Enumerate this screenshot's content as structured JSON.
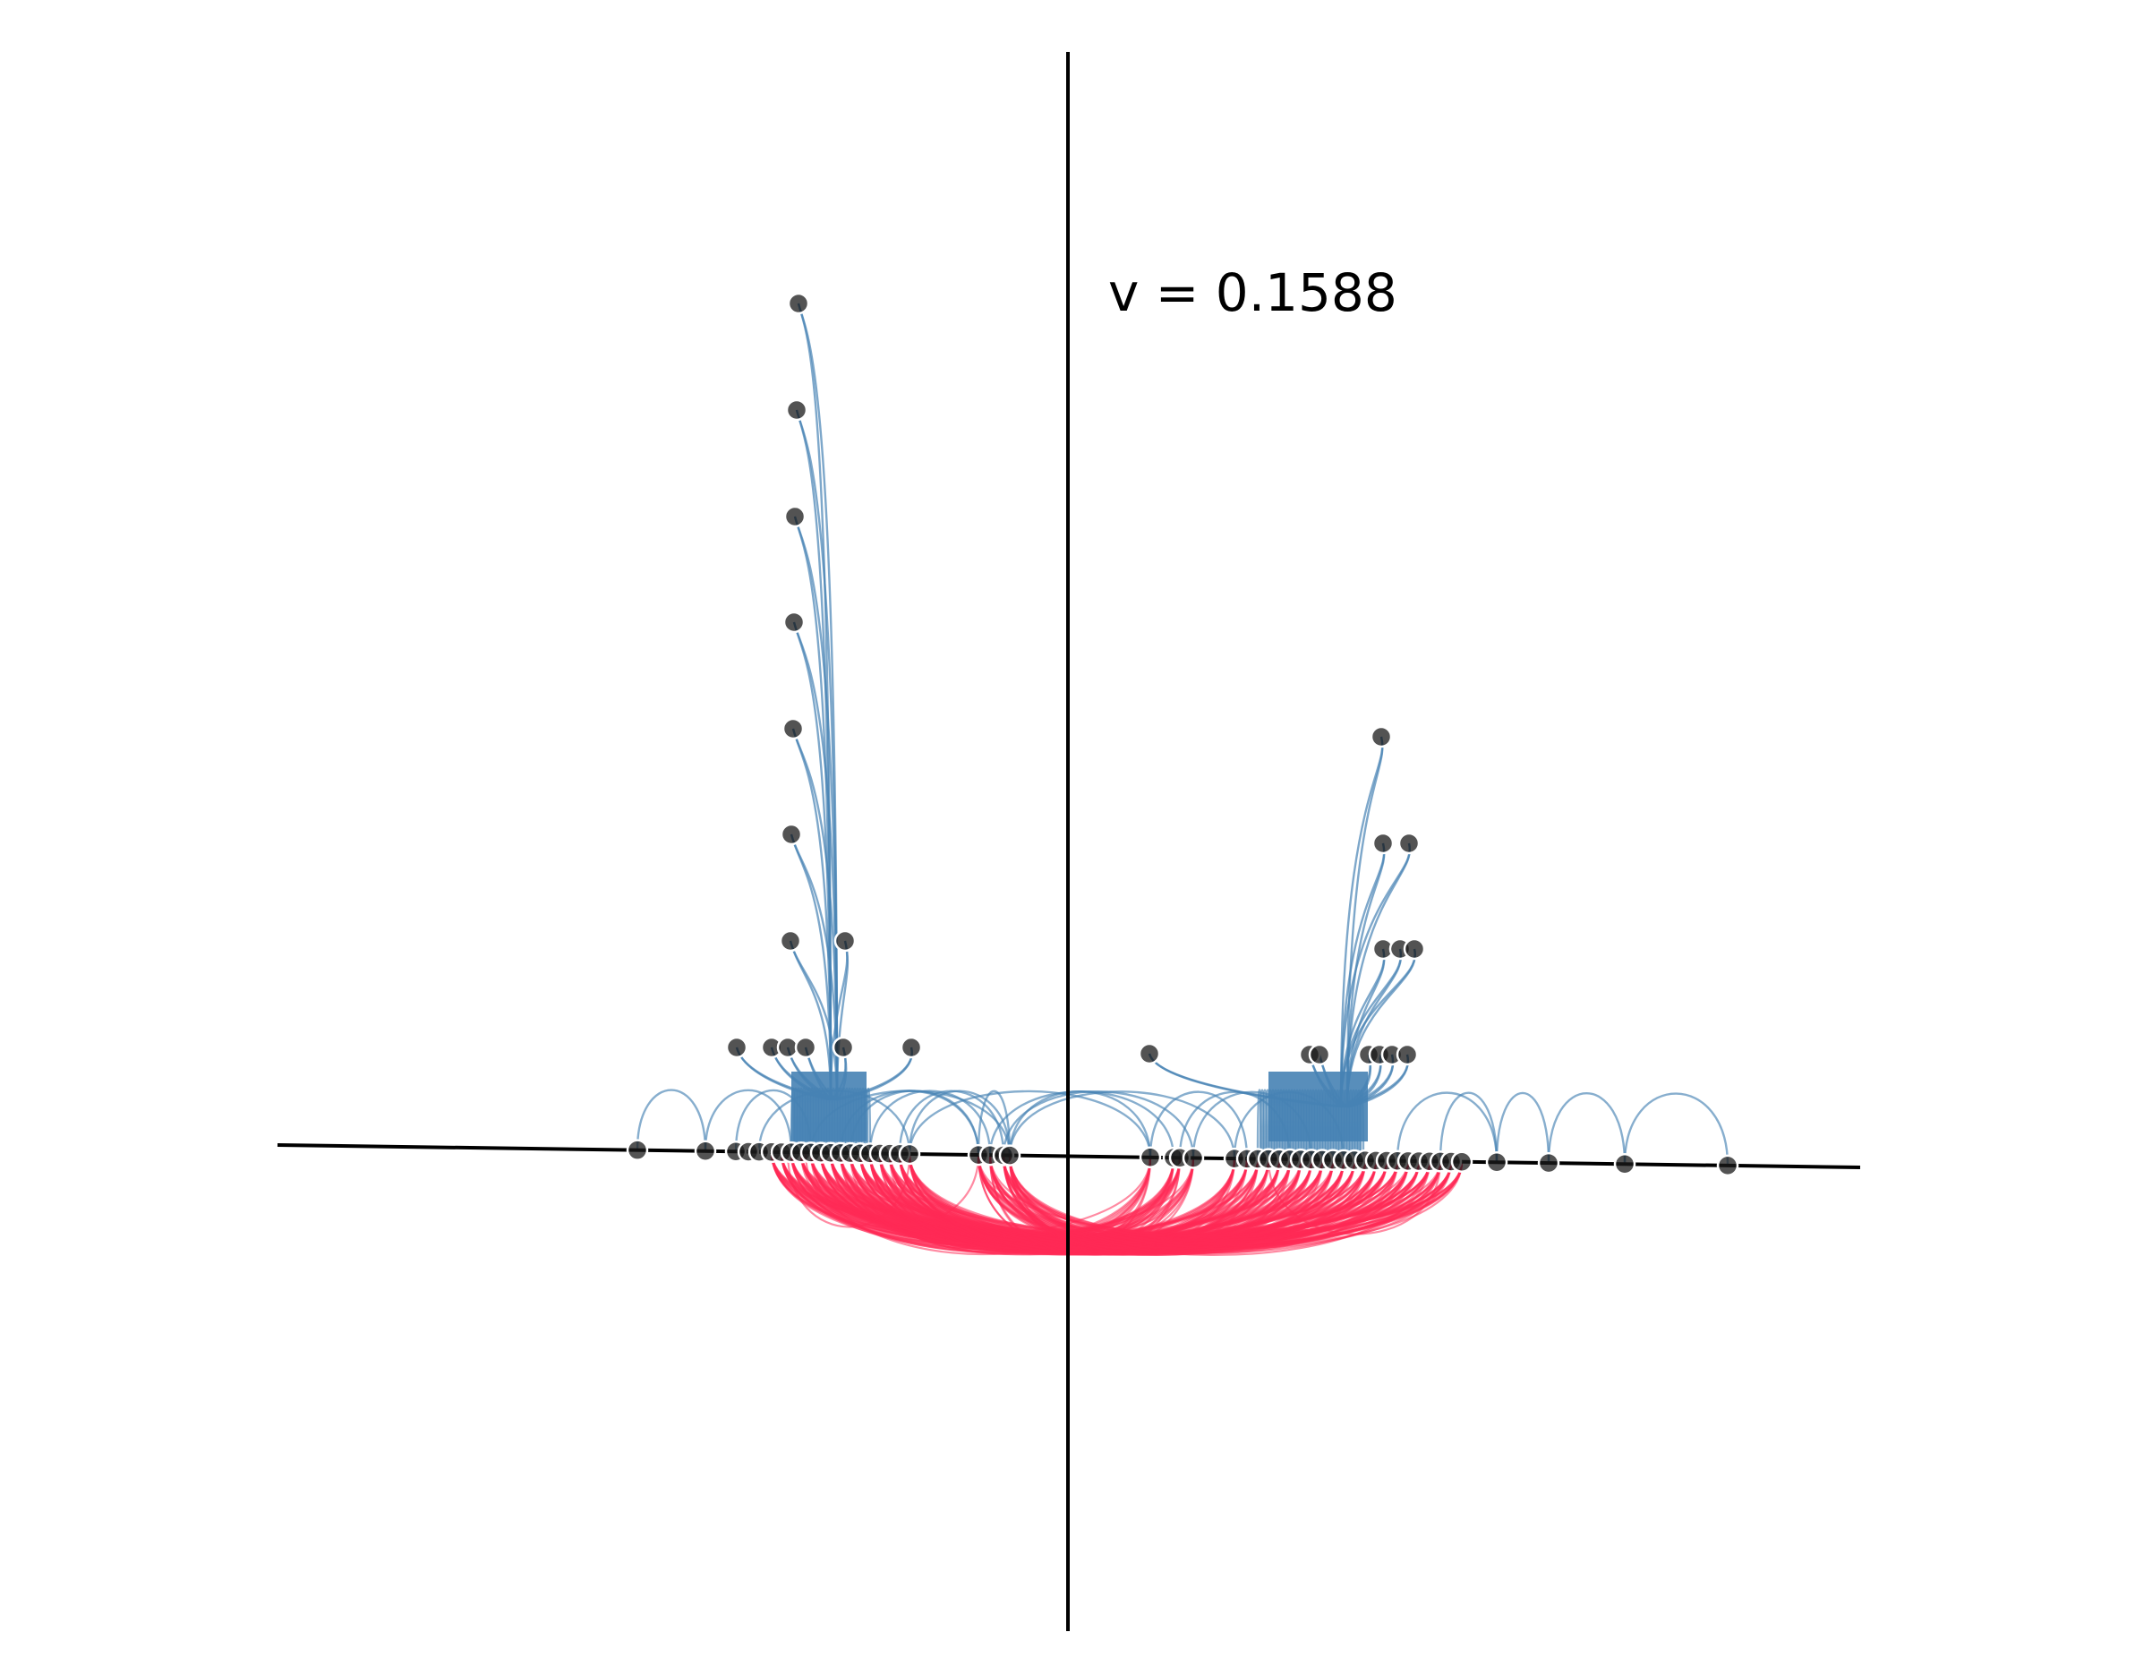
{
  "annotation": {
    "text": "v = 0.1588"
  },
  "colors": {
    "axis": "#000000",
    "upper_arcs": "#4682b4",
    "lower_arcs": "#ff2a55",
    "node_fill": "#1a1a1a",
    "node_stroke": "#ffffff"
  },
  "diagram": {
    "description_free": true,
    "node_count_on_axis": 60,
    "node_count_above_axis": 30
  }
}
